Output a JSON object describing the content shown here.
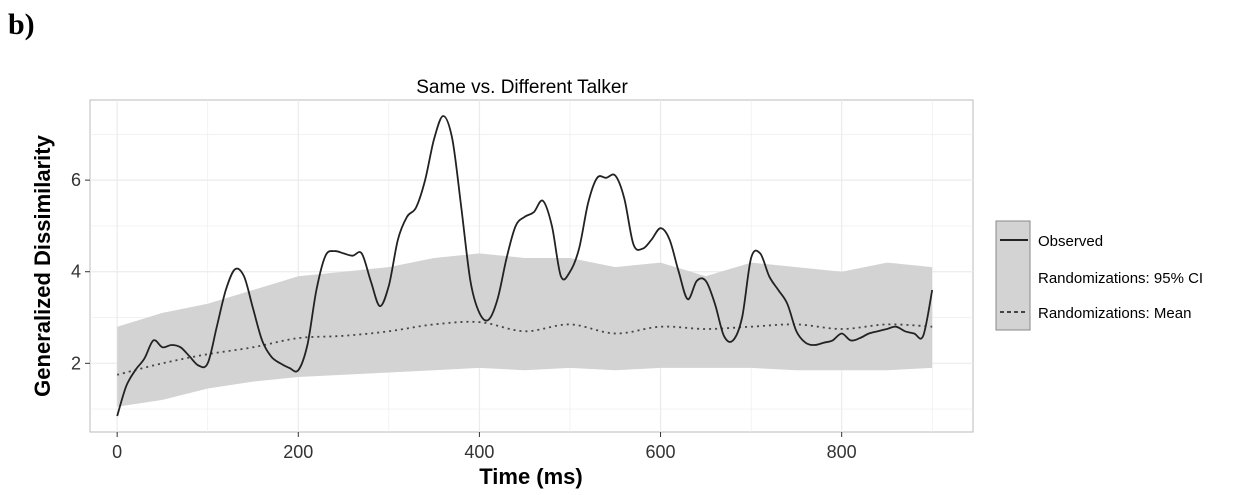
{
  "panel_label": "b)",
  "chart_data": {
    "type": "line",
    "title": "Same vs. Different Talker",
    "xlabel": "Time (ms)",
    "ylabel": "Generalized Dissimilarity",
    "xlim": [
      -30,
      945
    ],
    "ylim": [
      0.5,
      7.75
    ],
    "xticks": [
      0,
      200,
      400,
      600,
      800
    ],
    "yticks": [
      2,
      4,
      6
    ],
    "grid": true,
    "legend_position": "right",
    "legend": [
      {
        "label": "Observed",
        "style": "solid"
      },
      {
        "label": "Randomizations: 95% CI",
        "style": "band"
      },
      {
        "label": "Randomizations: Mean",
        "style": "dotted"
      }
    ],
    "colors": {
      "band": "#d3d3d3",
      "observed": "#222222",
      "mean": "#444444",
      "panel": "#ffffff",
      "grid": "#ebebeb"
    },
    "series": [
      {
        "name": "Observed",
        "x": [
          0,
          10,
          20,
          30,
          40,
          50,
          60,
          70,
          80,
          90,
          100,
          110,
          120,
          130,
          140,
          150,
          160,
          170,
          180,
          190,
          200,
          210,
          220,
          230,
          240,
          250,
          260,
          270,
          280,
          290,
          300,
          310,
          320,
          330,
          340,
          350,
          360,
          370,
          380,
          390,
          400,
          410,
          420,
          430,
          440,
          450,
          460,
          470,
          480,
          490,
          500,
          510,
          520,
          530,
          540,
          550,
          560,
          570,
          580,
          590,
          600,
          610,
          620,
          630,
          640,
          650,
          660,
          670,
          680,
          690,
          700,
          710,
          720,
          730,
          740,
          750,
          760,
          770,
          780,
          790,
          800,
          810,
          820,
          830,
          840,
          850,
          860,
          870,
          880,
          890,
          900
        ],
        "y": [
          0.85,
          1.5,
          1.85,
          2.1,
          2.5,
          2.35,
          2.4,
          2.35,
          2.15,
          1.95,
          2.0,
          2.8,
          3.6,
          4.05,
          3.9,
          3.2,
          2.5,
          2.15,
          2.0,
          1.9,
          1.85,
          2.4,
          3.6,
          4.35,
          4.45,
          4.4,
          4.35,
          4.4,
          3.8,
          3.25,
          3.7,
          4.7,
          5.2,
          5.4,
          6.0,
          6.9,
          7.4,
          6.9,
          5.4,
          3.8,
          3.1,
          2.95,
          3.4,
          4.3,
          5.0,
          5.2,
          5.3,
          5.55,
          5.0,
          3.9,
          4.0,
          4.5,
          5.5,
          6.05,
          6.05,
          6.1,
          5.6,
          4.6,
          4.5,
          4.7,
          4.95,
          4.7,
          4.0,
          3.4,
          3.8,
          3.8,
          3.3,
          2.6,
          2.5,
          3.0,
          4.3,
          4.4,
          3.9,
          3.6,
          3.3,
          2.7,
          2.45,
          2.4,
          2.45,
          2.5,
          2.65,
          2.5,
          2.55,
          2.65,
          2.7,
          2.75,
          2.8,
          2.7,
          2.65,
          2.6,
          3.6
        ]
      },
      {
        "name": "Randomizations: Mean",
        "x": [
          0,
          50,
          100,
          150,
          200,
          250,
          300,
          350,
          400,
          450,
          500,
          550,
          600,
          650,
          700,
          750,
          800,
          850,
          900
        ],
        "y": [
          1.75,
          2.0,
          2.2,
          2.35,
          2.55,
          2.6,
          2.7,
          2.85,
          2.9,
          2.7,
          2.85,
          2.65,
          2.8,
          2.75,
          2.8,
          2.85,
          2.75,
          2.85,
          2.8
        ]
      },
      {
        "name": "Randomizations: 95% CI",
        "x": [
          0,
          50,
          100,
          150,
          200,
          250,
          300,
          350,
          400,
          450,
          500,
          550,
          600,
          650,
          700,
          750,
          800,
          850,
          900
        ],
        "lower": [
          1.05,
          1.2,
          1.45,
          1.6,
          1.7,
          1.75,
          1.8,
          1.85,
          1.9,
          1.85,
          1.9,
          1.85,
          1.9,
          1.9,
          1.9,
          1.85,
          1.85,
          1.85,
          1.9
        ],
        "upper": [
          2.8,
          3.1,
          3.3,
          3.6,
          3.9,
          4.0,
          4.1,
          4.3,
          4.4,
          4.3,
          4.3,
          4.1,
          4.2,
          3.9,
          4.2,
          4.1,
          4.0,
          4.2,
          4.1
        ]
      }
    ]
  }
}
